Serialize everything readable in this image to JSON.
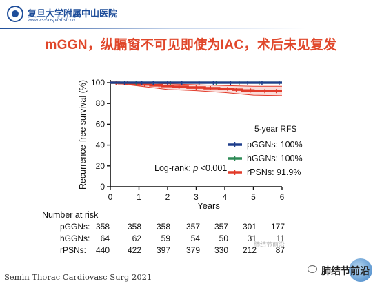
{
  "header": {
    "hospital_name": "复旦大学附属中山医院",
    "hospital_url": "www.zs-hospital.sh.cn"
  },
  "slide": {
    "title": "mGGN，纵膈窗不可见即使为IAC，术后未见复发",
    "citation": "Semin Thorac Cardiovasc Surg 2021"
  },
  "wechat_badge": {
    "icon": "wechat-icon",
    "account_name": "肺结节前沿"
  },
  "chart_data": {
    "type": "line",
    "subtype": "kaplan-meier step",
    "ylabel": "Recurrence-free survival (%)",
    "xlabel": "Years",
    "xlim": [
      0,
      6
    ],
    "ylim": [
      0,
      100
    ],
    "xticks": [
      "0",
      "1",
      "2",
      "3",
      "4",
      "5",
      "6"
    ],
    "yticks": [
      "0",
      "20",
      "40",
      "60",
      "80",
      "100"
    ],
    "annotation": "Log-rank: p <0.001",
    "legend_title": "5-year RFS",
    "legend_position": "right",
    "series": [
      {
        "name": "pGGNs: 100%",
        "color": "#1f3e8c",
        "points": [
          [
            0,
            100
          ],
          [
            6,
            100
          ]
        ],
        "censor_x": [
          0.5,
          1.1,
          1.5,
          2.0,
          2.5,
          3.1,
          3.6,
          4.2,
          4.8,
          5.3,
          5.9
        ]
      },
      {
        "name": "hGGNs: 100%",
        "color": "#2e8b57",
        "points": [
          [
            0,
            100
          ],
          [
            6,
            100
          ]
        ],
        "censor_x": [
          0.9,
          2.1,
          3.7,
          4.5,
          5.2
        ]
      },
      {
        "name": "rPSNs: 91.9%",
        "color": "#e23b2a",
        "points": [
          [
            0,
            100
          ],
          [
            0.3,
            100
          ],
          [
            0.3,
            99.5
          ],
          [
            0.7,
            99.5
          ],
          [
            0.7,
            99
          ],
          [
            1.0,
            99
          ],
          [
            1.0,
            98.3
          ],
          [
            1.4,
            98.3
          ],
          [
            1.4,
            97.5
          ],
          [
            1.8,
            97.5
          ],
          [
            1.8,
            96.8
          ],
          [
            2.2,
            96.8
          ],
          [
            2.2,
            96
          ],
          [
            2.7,
            96
          ],
          [
            2.7,
            95.3
          ],
          [
            3.3,
            95.3
          ],
          [
            3.3,
            94.7
          ],
          [
            3.8,
            94.7
          ],
          [
            3.8,
            94
          ],
          [
            4.3,
            94
          ],
          [
            4.3,
            93.3
          ],
          [
            4.6,
            93.3
          ],
          [
            4.6,
            92.5
          ],
          [
            5.0,
            92.5
          ],
          [
            5.0,
            91.9
          ],
          [
            6,
            91.9
          ]
        ],
        "ci_upper": [
          [
            0,
            100
          ],
          [
            1,
            99.8
          ],
          [
            2,
            98.8
          ],
          [
            3,
            98
          ],
          [
            4,
            97.2
          ],
          [
            5,
            96.5
          ],
          [
            6,
            96.5
          ]
        ],
        "ci_lower": [
          [
            0,
            100
          ],
          [
            1,
            96.8
          ],
          [
            2,
            93.5
          ],
          [
            3,
            92.3
          ],
          [
            4,
            90.5
          ],
          [
            5,
            88
          ],
          [
            6,
            87.5
          ]
        ],
        "censor_x": [
          0.2,
          0.6,
          1.2,
          1.7,
          2.4,
          3.0,
          3.5,
          4.1,
          4.4,
          4.9,
          5.4,
          5.8
        ]
      }
    ],
    "number_at_risk": {
      "label": "Number at risk",
      "time_points": [
        0,
        1,
        2,
        3,
        4,
        5,
        6
      ],
      "rows": [
        {
          "group": "pGGNs:",
          "values": [
            "358",
            "358",
            "358",
            "357",
            "357",
            "301",
            "177"
          ]
        },
        {
          "group": "hGGNs:",
          "values": [
            "64",
            "62",
            "59",
            "54",
            "50",
            "31",
            "11"
          ]
        },
        {
          "group": "rPSNs:",
          "values": [
            "440",
            "422",
            "397",
            "379",
            "330",
            "212",
            "87"
          ]
        }
      ]
    }
  },
  "watermark": "肺结节前沿"
}
